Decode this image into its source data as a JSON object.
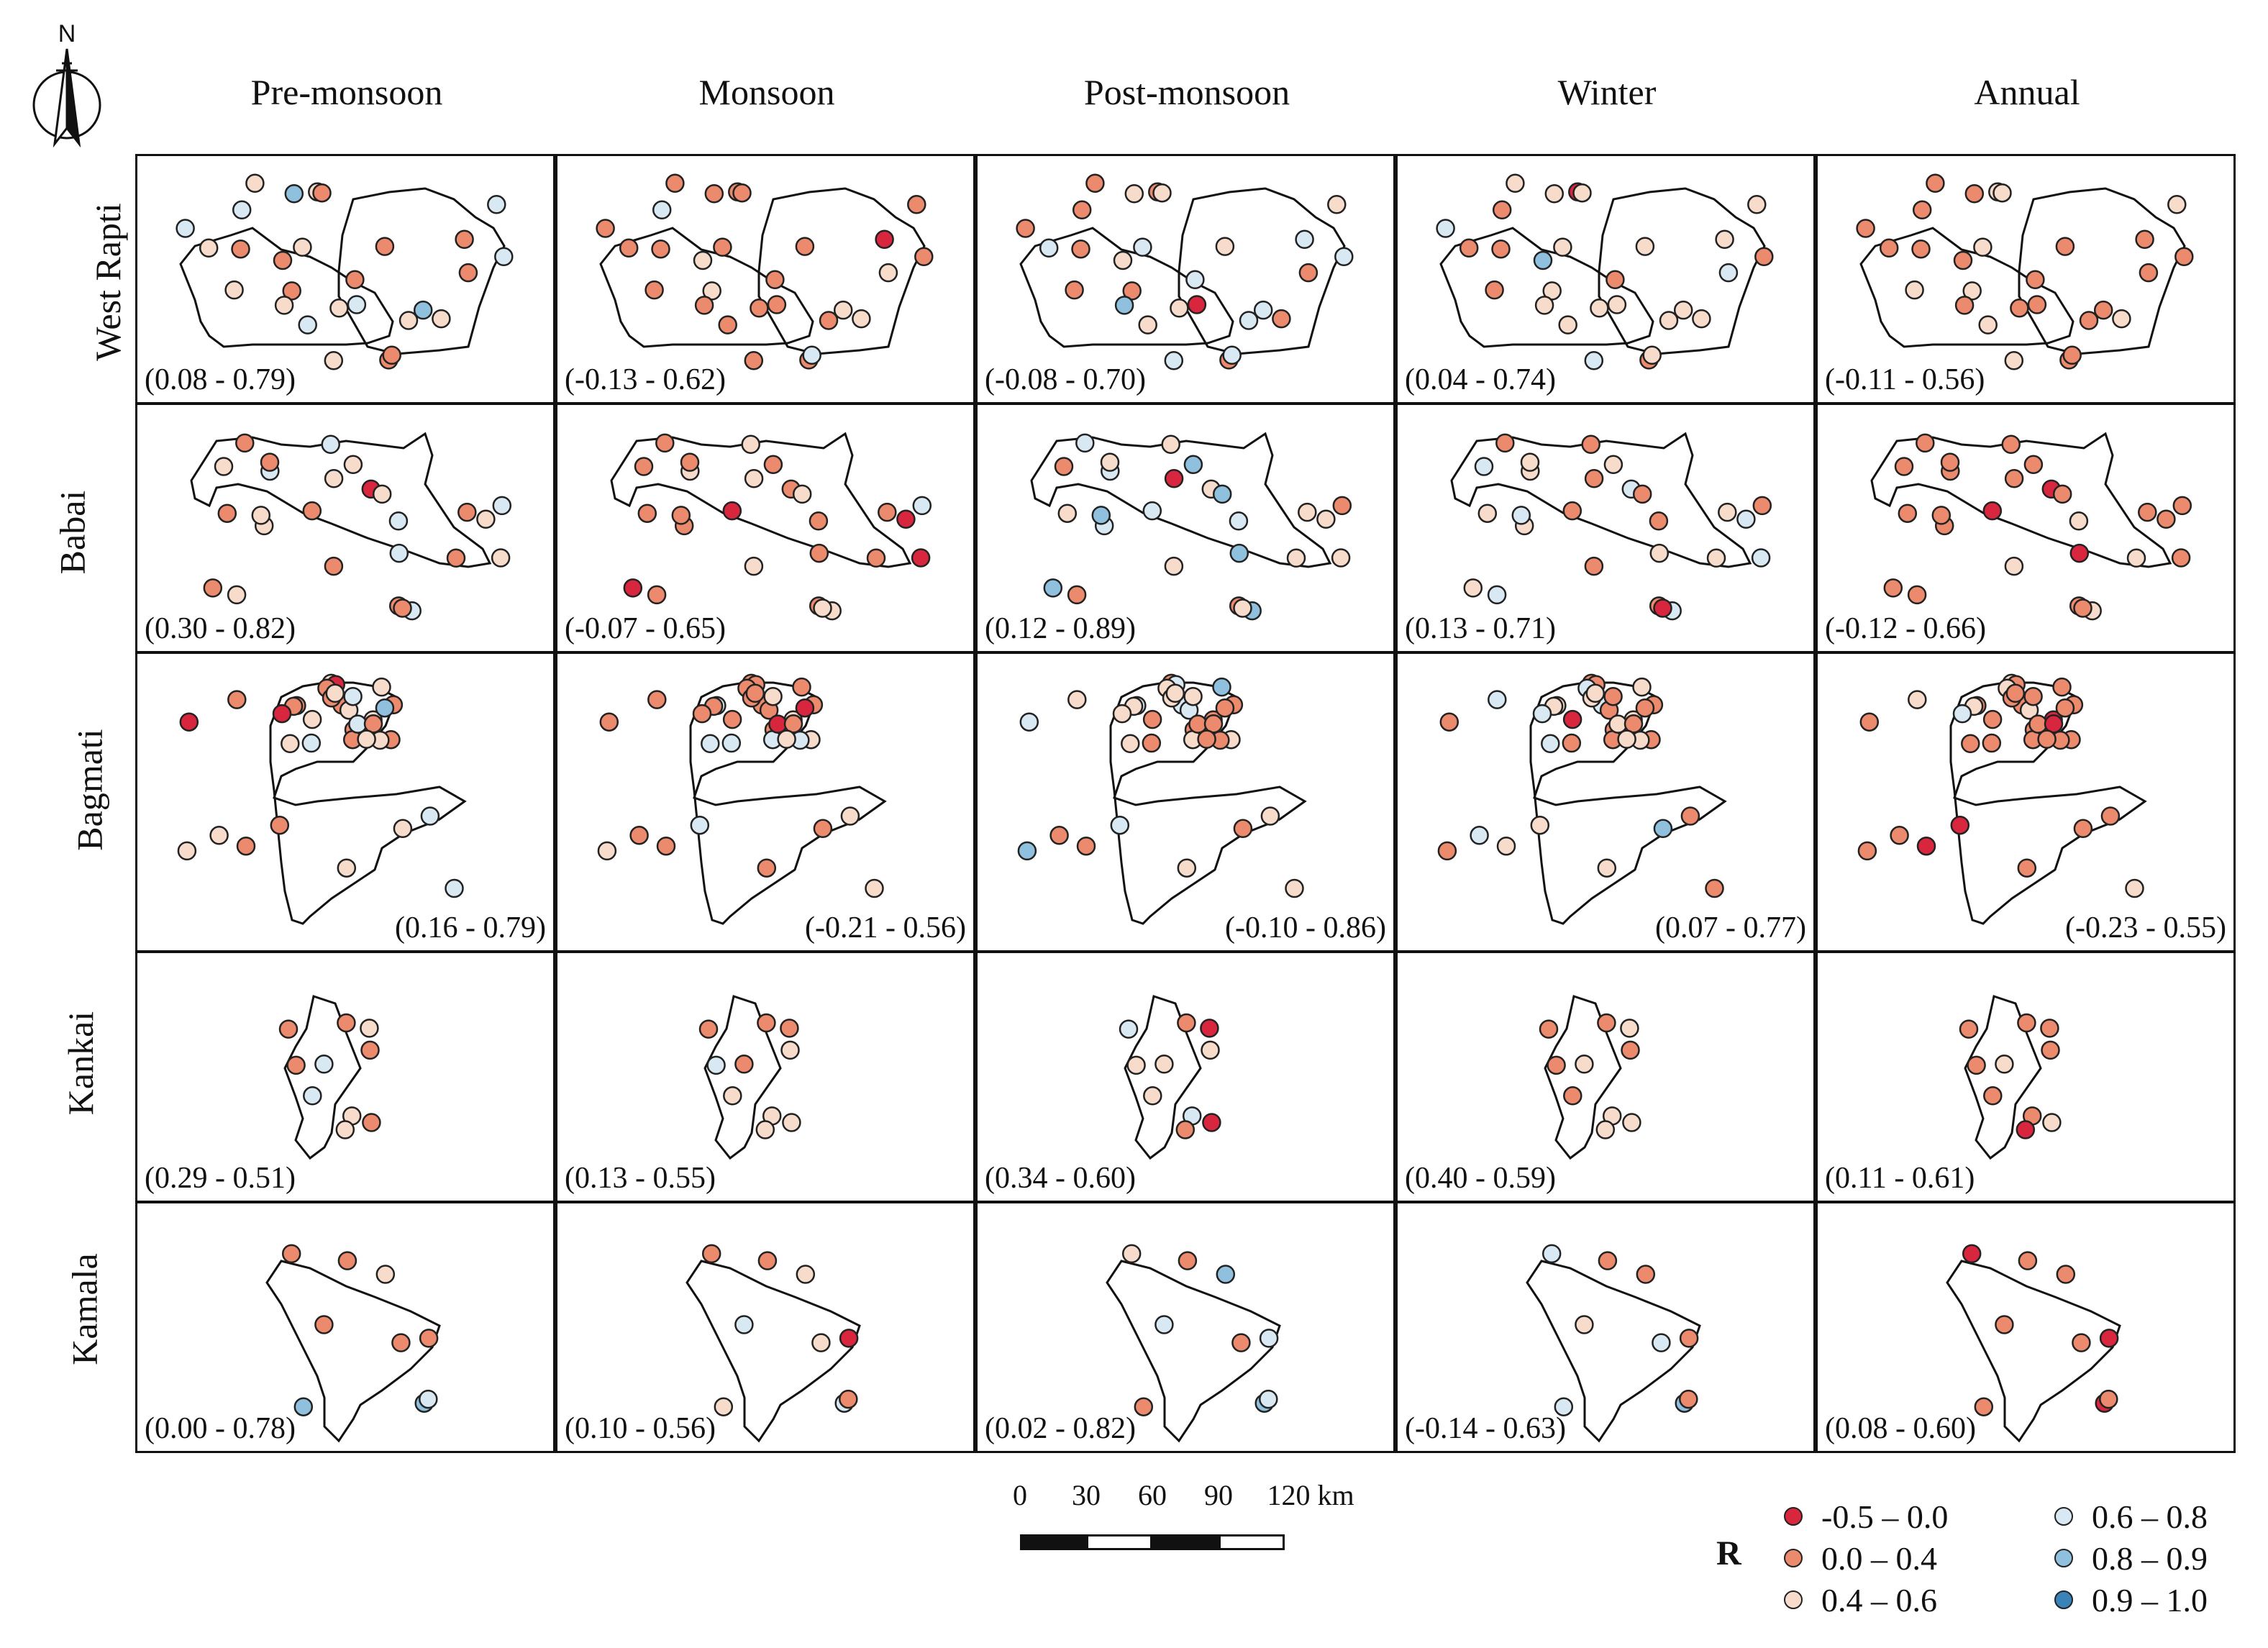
{
  "north_arrow": {
    "label": "N"
  },
  "columns": [
    "Pre-monsoon",
    "Monsoon",
    "Post-monsoon",
    "Winter",
    "Annual"
  ],
  "rows": [
    {
      "name": "West Rapti",
      "ranges": [
        "(0.08 - 0.79)",
        "(-0.13 - 0.62)",
        "(-0.08 - 0.70)",
        "(0.04 - 0.74)",
        "(-0.11 - 0.56)"
      ]
    },
    {
      "name": "Babai",
      "ranges": [
        "(0.30 - 0.82)",
        "(-0.07 - 0.65)",
        "(0.12 - 0.89)",
        "(0.13 - 0.71)",
        "(-0.12 - 0.66)"
      ]
    },
    {
      "name": "Bagmati",
      "ranges": [
        "(0.16 - 0.79)",
        "(-0.21 - 0.56)",
        "(-0.10 - 0.86)",
        "(0.07 - 0.77)",
        "(-0.23 - 0.55)"
      ]
    },
    {
      "name": "Kankai",
      "ranges": [
        "(0.29 - 0.51)",
        "(0.13 - 0.55)",
        "(0.34 - 0.60)",
        "(0.40 - 0.59)",
        "(0.11 - 0.61)"
      ]
    },
    {
      "name": "Kamala",
      "ranges": [
        "(0.00 - 0.78)",
        "(0.10 - 0.56)",
        "(0.02 - 0.82)",
        "(-0.14 - 0.63)",
        "(0.08 - 0.60)"
      ]
    }
  ],
  "scale_bar": {
    "ticks": [
      "0",
      "30",
      "60",
      "90",
      "120 km"
    ]
  },
  "legend": {
    "title": "R",
    "classes": [
      {
        "label": "-0.5 – 0.0",
        "color": "#d7263d"
      },
      {
        "label": "0.0 – 0.4",
        "color": "#ec8a6d"
      },
      {
        "label": "0.4 – 0.6",
        "color": "#f8dccb"
      },
      {
        "label": "0.6 – 0.8",
        "color": "#d9e9f3"
      },
      {
        "label": "0.8 – 0.9",
        "color": "#8fc1df"
      },
      {
        "label": "0.9 – 1.0",
        "color": "#3a83b9"
      }
    ]
  }
}
